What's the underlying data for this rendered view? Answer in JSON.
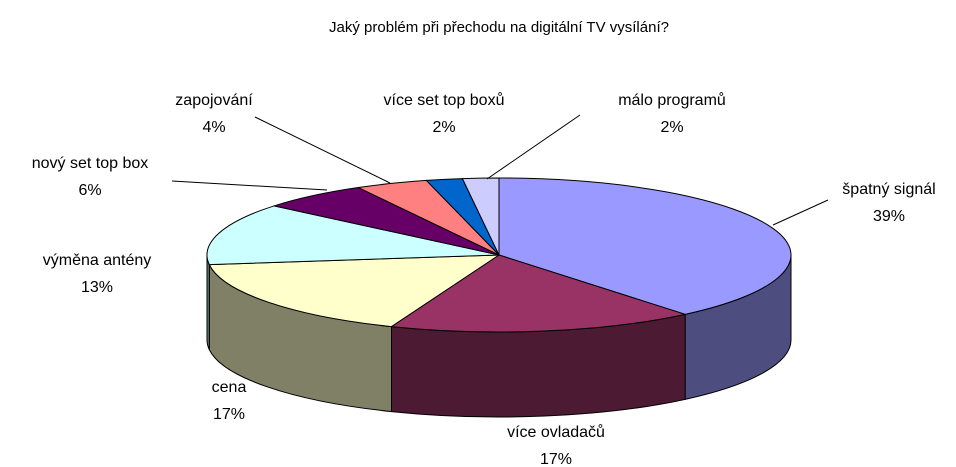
{
  "chart_data": {
    "type": "pie",
    "title": "Jaký problém při přechodu na digitální TV vysílání?",
    "categories": [
      "špatný signál",
      "více ovladačů",
      "cena",
      "výměna antény",
      "nový set top box",
      "zapojování",
      "více set top boxů",
      "málo programů"
    ],
    "values": [
      39,
      17,
      17,
      13,
      6,
      4,
      2,
      2
    ],
    "value_labels": [
      "39%",
      "17%",
      "17%",
      "13%",
      "6%",
      "4%",
      "2%",
      "2%"
    ],
    "colors": [
      "#9999ff",
      "#993366",
      "#ffffcc",
      "#ccffff",
      "#660066",
      "#ff8080",
      "#0066cc",
      "#ccccff"
    ]
  }
}
